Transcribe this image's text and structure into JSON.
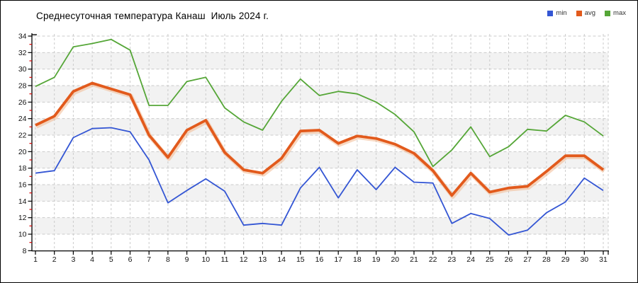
{
  "title": "Среднесуточная температура Канаш  Июль 2024 г.",
  "legend": [
    {
      "label": "min",
      "color": "#3456d4"
    },
    {
      "label": "avg",
      "color": "#e25a1c"
    },
    {
      "label": "max",
      "color": "#55a637"
    }
  ],
  "chart_data": {
    "type": "line",
    "title": "Среднесуточная температура Канаш  Июль 2024 г.",
    "xlabel": "",
    "ylabel": "",
    "x": [
      1,
      2,
      3,
      4,
      5,
      6,
      7,
      8,
      9,
      10,
      11,
      12,
      13,
      14,
      15,
      16,
      17,
      18,
      19,
      20,
      21,
      22,
      23,
      24,
      25,
      26,
      27,
      28,
      29,
      30,
      31
    ],
    "ylim": [
      8,
      34
    ],
    "ytick_step": 2,
    "grid": "dashed",
    "legend_position": "top-right",
    "series": [
      {
        "name": "min",
        "color": "#3456d4",
        "width": 1.8,
        "values": [
          17.4,
          17.7,
          21.7,
          22.8,
          22.9,
          22.4,
          19.0,
          13.8,
          15.3,
          16.7,
          15.2,
          11.1,
          11.3,
          11.1,
          15.6,
          18.1,
          14.4,
          17.8,
          15.4,
          18.1,
          16.3,
          16.2,
          11.3,
          12.5,
          11.9,
          9.9,
          10.5,
          12.6,
          13.9,
          16.8,
          15.3
        ]
      },
      {
        "name": "avg",
        "color": "#e25a1c",
        "width": 3.8,
        "values": [
          23.2,
          24.3,
          27.3,
          28.3,
          27.6,
          26.9,
          22.0,
          19.3,
          22.6,
          23.8,
          19.9,
          17.8,
          17.4,
          19.2,
          22.5,
          22.6,
          21.0,
          21.9,
          21.6,
          20.9,
          19.8,
          17.7,
          14.7,
          17.4,
          15.1,
          15.6,
          15.8,
          17.6,
          19.5,
          19.5,
          17.8
        ]
      },
      {
        "name": "max",
        "color": "#55a637",
        "width": 1.8,
        "values": [
          27.9,
          29.0,
          32.7,
          33.1,
          33.6,
          32.3,
          25.6,
          25.6,
          28.5,
          29.0,
          25.3,
          23.6,
          22.6,
          26.1,
          28.8,
          26.8,
          27.3,
          27.0,
          26.0,
          24.5,
          22.4,
          18.2,
          20.2,
          23.0,
          19.4,
          20.6,
          22.7,
          22.5,
          24.4,
          23.6,
          21.9
        ]
      }
    ],
    "style": {
      "band_colors": [
        "#ffffff",
        "#f2f2f2"
      ],
      "gridline_color": "#cbcbcb",
      "axis_color": "#000000",
      "major_tick_color": "#000000",
      "minor_tick_color": "#dd0000",
      "tick_label_color": "#111111",
      "avg_shadow_color": "#f2b488"
    }
  }
}
